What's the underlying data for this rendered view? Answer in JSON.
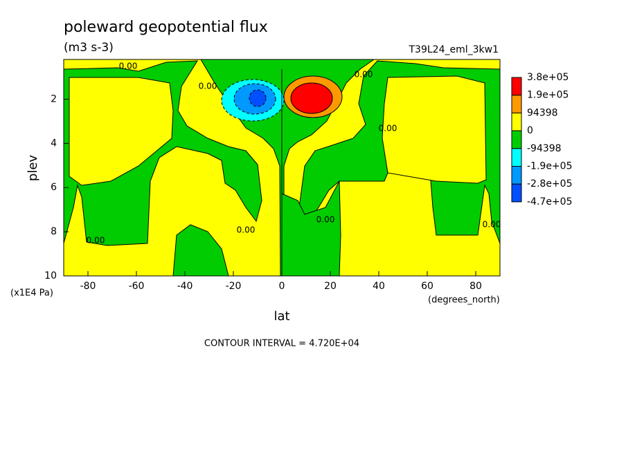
{
  "chart_data": {
    "type": "contour",
    "title": "poleward geopotential flux",
    "subtitle": "(m3 s-3)",
    "run_label": "T39L24_eml_3kw1",
    "x_label": "lat",
    "x_units": "(degrees_north)",
    "y_label": "plev",
    "y_units": "(x1E4 Pa)",
    "footer": "CONTOUR INTERVAL = 4.720E+04",
    "contour_label": "0.00",
    "xlim": [
      -90,
      90
    ],
    "xticks": [
      -80,
      -60,
      -40,
      -20,
      0,
      20,
      40,
      60,
      80
    ],
    "ylim": [
      10,
      0.2
    ],
    "yticks": [
      2,
      4,
      6,
      8,
      10
    ],
    "colorbar": {
      "levels": [
        {
          "value": 380000,
          "label": "3.8e+05"
        },
        {
          "value": 190000,
          "label": "1.9e+05"
        },
        94398,
        0,
        -94398,
        {
          "value": -190000,
          "label": "-1.9e+05"
        },
        {
          "value": -280000,
          "label": "-2.8e+05"
        },
        {
          "value": -470000,
          "label": "-4.7e+05"
        }
      ],
      "colors": [
        "#ff0000",
        "#ff9900",
        "#ffff00",
        "#00cc00",
        "#00ffff",
        "#0099ff",
        "#0050ff"
      ]
    }
  }
}
